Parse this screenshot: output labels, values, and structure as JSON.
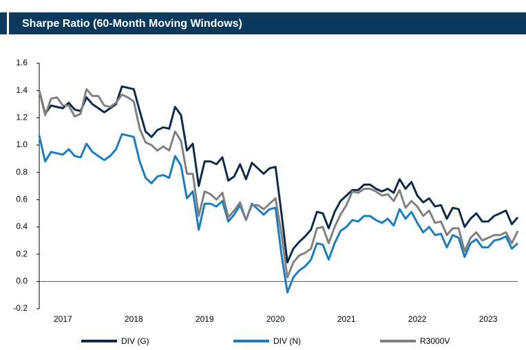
{
  "chart_data": {
    "type": "line",
    "title": "Sharpe Ratio (60-Month Moving Windows)",
    "categories": [
      null,
      null,
      null,
      null,
      "2017",
      null,
      null,
      null,
      null,
      null,
      null,
      null,
      null,
      null,
      null,
      null,
      "2018",
      null,
      null,
      null,
      null,
      null,
      null,
      null,
      null,
      null,
      null,
      null,
      "2019",
      null,
      null,
      null,
      null,
      null,
      null,
      null,
      null,
      null,
      null,
      null,
      "2020",
      null,
      null,
      null,
      null,
      null,
      null,
      null,
      null,
      null,
      null,
      null,
      "2021",
      null,
      null,
      null,
      null,
      null,
      null,
      null,
      null,
      null,
      null,
      null,
      "2022",
      null,
      null,
      null,
      null,
      null,
      null,
      null,
      null,
      null,
      null,
      null,
      "2023",
      null,
      null,
      null,
      null,
      null
    ],
    "series": [
      {
        "name": "DIV (G)",
        "color": "#0d2b48",
        "values": [
          1.4,
          1.23,
          1.29,
          1.28,
          1.27,
          1.31,
          1.26,
          1.25,
          1.35,
          1.3,
          1.27,
          1.24,
          1.27,
          1.3,
          1.43,
          1.42,
          1.41,
          1.25,
          1.1,
          1.06,
          1.11,
          1.13,
          1.12,
          1.28,
          1.22,
          0.96,
          1.01,
          0.7,
          0.88,
          0.88,
          0.86,
          0.91,
          0.74,
          0.77,
          0.86,
          0.75,
          0.87,
          0.83,
          0.79,
          0.83,
          0.84,
          0.5,
          0.14,
          0.24,
          0.29,
          0.33,
          0.38,
          0.51,
          0.5,
          0.39,
          0.51,
          0.59,
          0.63,
          0.67,
          0.67,
          0.71,
          0.71,
          0.68,
          0.66,
          0.68,
          0.65,
          0.75,
          0.68,
          0.73,
          0.63,
          0.58,
          0.61,
          0.55,
          0.56,
          0.46,
          0.54,
          0.53,
          0.4,
          0.46,
          0.5,
          0.44,
          0.44,
          0.48,
          0.5,
          0.52,
          0.42,
          0.47
        ]
      },
      {
        "name": "DIV (N)",
        "color": "#1a7cc1",
        "values": [
          1.07,
          0.88,
          0.95,
          0.94,
          0.93,
          0.97,
          0.92,
          0.91,
          1.01,
          0.95,
          0.92,
          0.89,
          0.92,
          0.97,
          1.08,
          1.07,
          1.06,
          0.88,
          0.76,
          0.72,
          0.77,
          0.78,
          0.76,
          0.92,
          0.85,
          0.61,
          0.66,
          0.38,
          0.57,
          0.57,
          0.55,
          0.59,
          0.44,
          0.49,
          0.56,
          0.45,
          0.57,
          0.53,
          0.49,
          0.53,
          0.54,
          0.2,
          -0.08,
          0.03,
          0.08,
          0.11,
          0.16,
          0.28,
          0.27,
          0.16,
          0.28,
          0.37,
          0.4,
          0.45,
          0.44,
          0.48,
          0.48,
          0.45,
          0.43,
          0.46,
          0.41,
          0.53,
          0.46,
          0.51,
          0.43,
          0.36,
          0.4,
          0.34,
          0.35,
          0.25,
          0.34,
          0.32,
          0.18,
          0.28,
          0.31,
          0.25,
          0.25,
          0.3,
          0.31,
          0.33,
          0.24,
          0.28
        ]
      },
      {
        "name": "R3000V",
        "color": "#808080",
        "values": [
          1.4,
          1.22,
          1.34,
          1.35,
          1.29,
          1.29,
          1.21,
          1.23,
          1.41,
          1.36,
          1.36,
          1.29,
          1.28,
          1.31,
          1.37,
          1.35,
          1.32,
          1.12,
          1.02,
          1.0,
          0.96,
          0.99,
          0.96,
          1.1,
          1.03,
          0.79,
          0.79,
          0.48,
          0.66,
          0.64,
          0.6,
          0.65,
          0.47,
          0.52,
          0.58,
          0.45,
          0.56,
          0.56,
          0.53,
          0.57,
          0.61,
          0.35,
          0.03,
          0.14,
          0.19,
          0.21,
          0.24,
          0.39,
          0.4,
          0.28,
          0.4,
          0.49,
          0.56,
          0.66,
          0.65,
          0.68,
          0.68,
          0.66,
          0.63,
          0.64,
          0.59,
          0.67,
          0.54,
          0.59,
          0.55,
          0.48,
          0.52,
          0.43,
          0.44,
          0.34,
          0.39,
          0.39,
          0.22,
          0.32,
          0.36,
          0.3,
          0.32,
          0.34,
          0.34,
          0.36,
          0.28,
          0.37
        ]
      }
    ],
    "ylim": [
      -0.2,
      1.6
    ],
    "yticks": [
      -0.2,
      {
        "value": 0,
        "label": "0.0"
      },
      0.2,
      0.4,
      0.6,
      0.8,
      {
        "value": 1,
        "label": "1.0"
      },
      1.2,
      1.4,
      1.6
    ],
    "grid": false,
    "legend": "bottom"
  }
}
